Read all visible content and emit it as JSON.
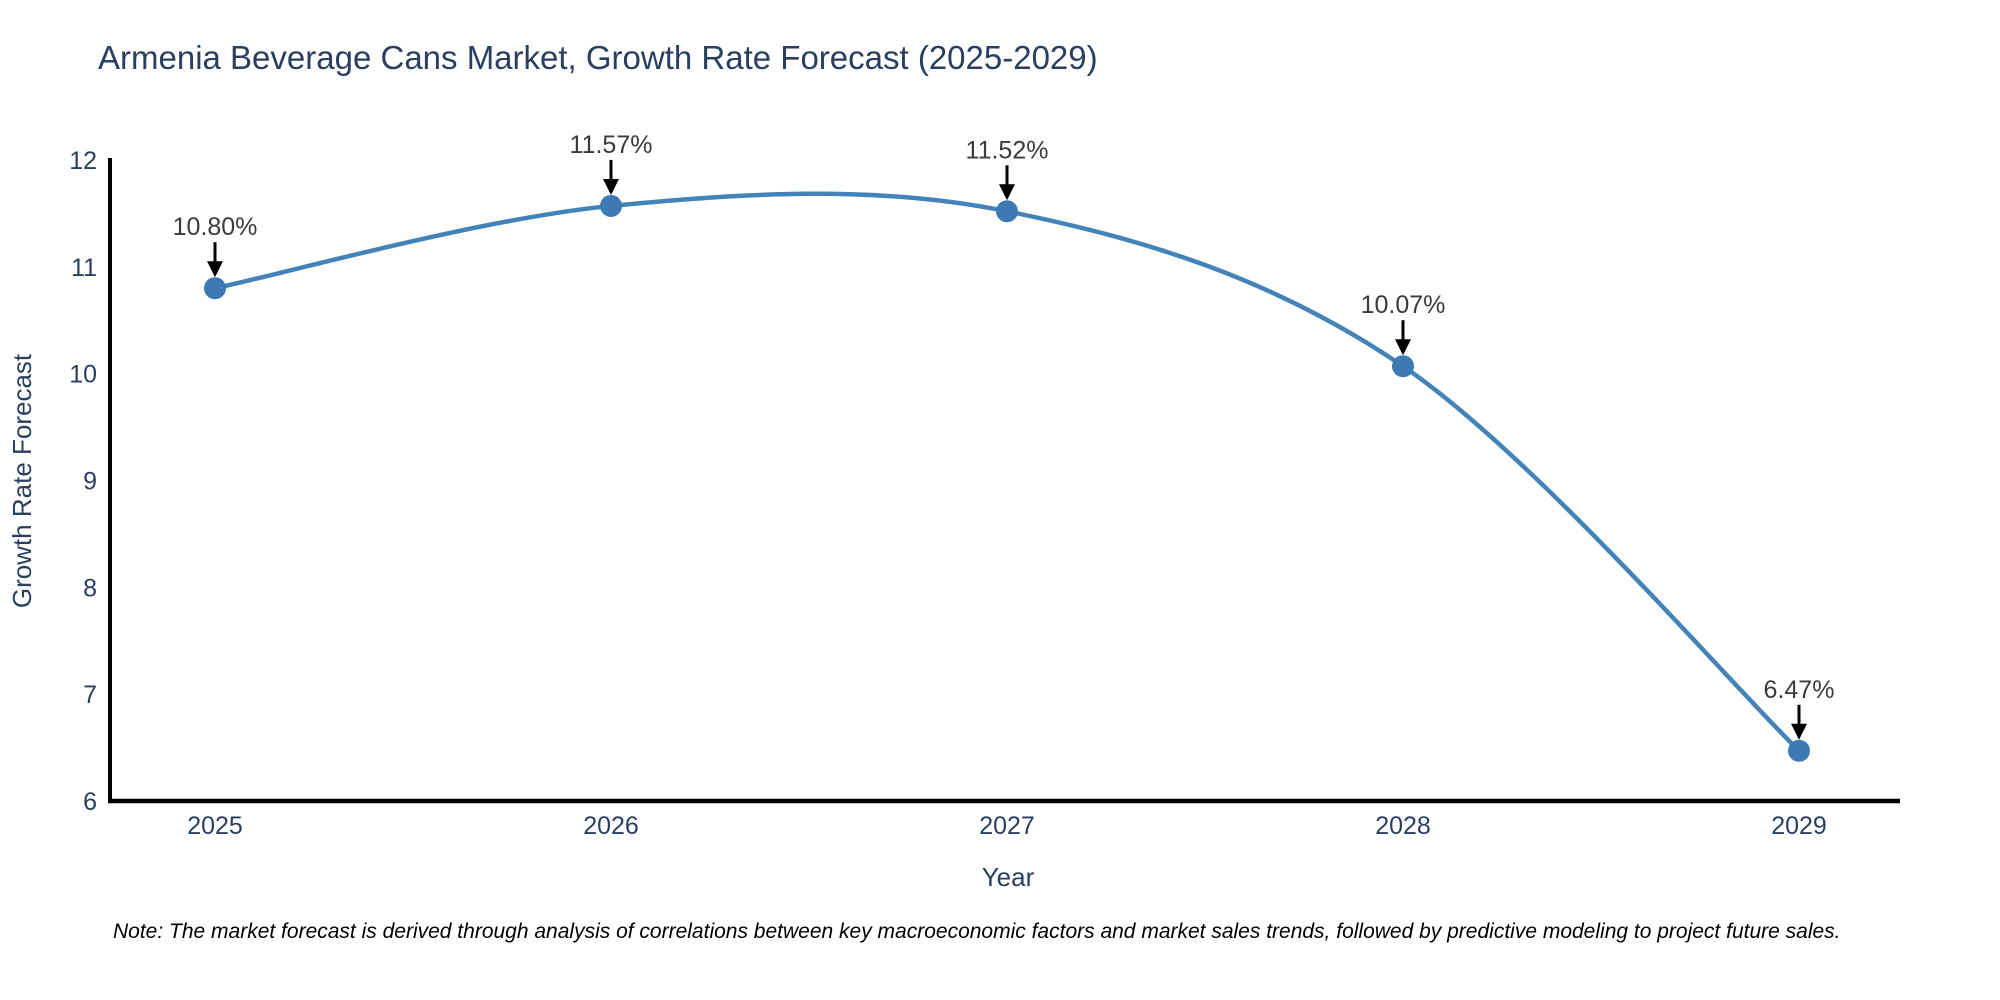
{
  "title": "Armenia Beverage Cans Market, Growth Rate Forecast (2025-2029)",
  "note": "Note: The market forecast is derived through analysis of correlations between key macroeconomic factors and market sales trends, followed by predictive modeling to project future sales.",
  "colors": {
    "line": "#4383b7",
    "marker": "#3d79b3",
    "axis_line": "#000000",
    "text": "#2a3f5f",
    "annotation_text": "#3b3b3b",
    "arrow": "#000000"
  },
  "chart_data": {
    "type": "line",
    "line_shape": "spline",
    "title": "Armenia Beverage Cans Market, Growth Rate Forecast (2025-2029)",
    "xlabel": "Year",
    "ylabel": "Growth Rate Forecast",
    "categories": [
      "2025",
      "2026",
      "2027",
      "2028",
      "2029"
    ],
    "values": [
      10.8,
      11.57,
      11.52,
      10.07,
      6.47
    ],
    "point_labels": [
      "10.80%",
      "11.57%",
      "11.52%",
      "10.07%",
      "6.47%"
    ],
    "yticks": [
      6,
      7,
      8,
      9,
      10,
      11,
      12
    ],
    "ylim": [
      6,
      12
    ],
    "grid": false,
    "legend": "none",
    "annotation_style": "arrow-down"
  }
}
